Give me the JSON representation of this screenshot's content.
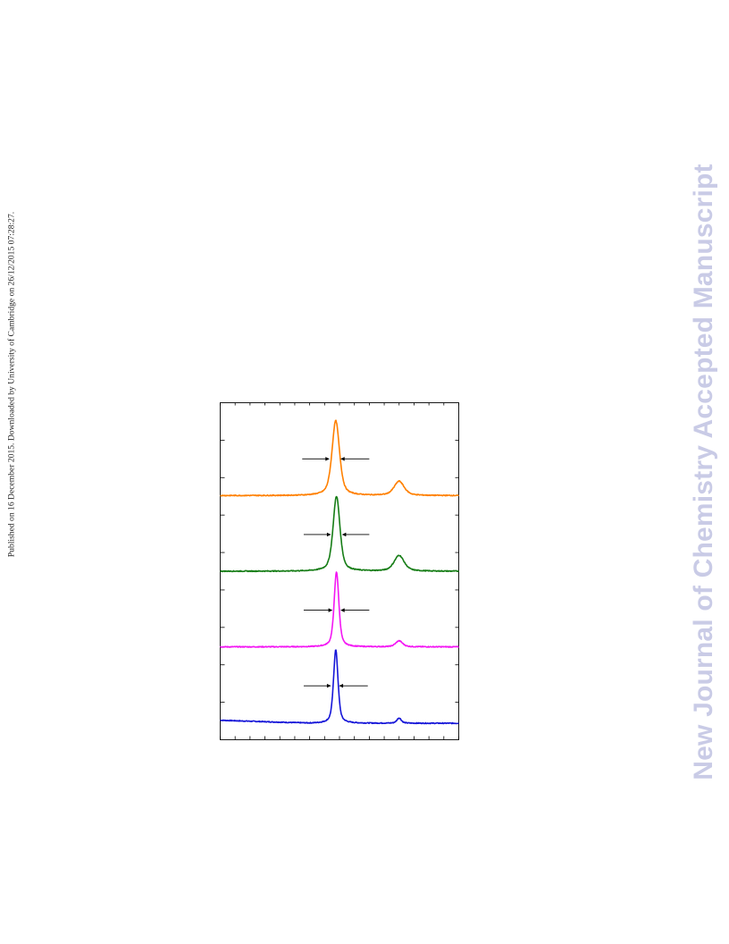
{
  "side_note": "Published on 16 December 2015. Downloaded by University of Cambridge on 26/12/2015 07:28:27.",
  "watermark": "New Journal of Chemistry Accepted Manuscript",
  "chart_data": {
    "type": "line",
    "title": "",
    "xlabel": "",
    "ylabel": "",
    "xlim": [
      0,
      16
    ],
    "ylim": [
      0,
      4.5
    ],
    "x_tick_count": 17,
    "y_ticks": [
      0.5,
      1.0,
      1.5,
      2.0,
      2.5,
      3.0,
      3.5,
      4.0
    ],
    "grid": false,
    "legend": "none",
    "series": [
      {
        "color": "#1515d8",
        "baseline": 0.22,
        "baseline_slope_left": 0.04,
        "peaks": [
          {
            "x": 7.75,
            "height": 0.98,
            "fwhm": 0.36
          },
          {
            "x": 12.0,
            "height": 0.07,
            "fwhm": 0.35
          }
        ],
        "fwhm_arrows": {
          "y": 0.72,
          "left_from": 5.6,
          "left_to": 7.4,
          "right_from": 9.9,
          "right_to": 8.0
        }
      },
      {
        "color": "#f316f3",
        "baseline": 1.24,
        "peaks": [
          {
            "x": 7.8,
            "height": 1.0,
            "fwhm": 0.38
          },
          {
            "x": 12.0,
            "height": 0.08,
            "fwhm": 0.55
          }
        ],
        "fwhm_arrows": {
          "y": 1.73,
          "left_from": 5.6,
          "left_to": 7.5,
          "right_from": 10.0,
          "right_to": 8.1
        }
      },
      {
        "color": "#167d16",
        "baseline": 2.25,
        "peaks": [
          {
            "x": 7.8,
            "height": 1.0,
            "fwhm": 0.55
          },
          {
            "x": 12.0,
            "height": 0.21,
            "fwhm": 0.8
          }
        ],
        "fwhm_arrows": {
          "y": 2.74,
          "left_from": 5.6,
          "left_to": 7.4,
          "right_from": 10.0,
          "right_to": 8.2
        }
      },
      {
        "color": "#ff8000",
        "baseline": 3.26,
        "peaks": [
          {
            "x": 7.75,
            "height": 1.0,
            "fwhm": 0.6
          },
          {
            "x": 12.0,
            "height": 0.19,
            "fwhm": 0.8
          }
        ],
        "fwhm_arrows": {
          "y": 3.75,
          "left_from": 5.5,
          "left_to": 7.3,
          "right_from": 10.0,
          "right_to": 8.1
        }
      }
    ]
  }
}
